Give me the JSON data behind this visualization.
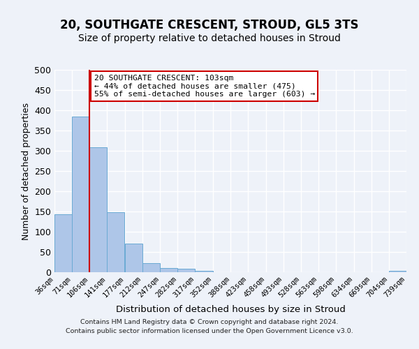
{
  "title": "20, SOUTHGATE CRESCENT, STROUD, GL5 3TS",
  "subtitle": "Size of property relative to detached houses in Stroud",
  "xlabel": "Distribution of detached houses by size in Stroud",
  "ylabel": "Number of detached properties",
  "footer_line1": "Contains HM Land Registry data © Crown copyright and database right 2024.",
  "footer_line2": "Contains public sector information licensed under the Open Government Licence v3.0.",
  "bin_edges": [
    36,
    71,
    106,
    141,
    177,
    212,
    247,
    282,
    317,
    352,
    388,
    423,
    458,
    493,
    528,
    563,
    598,
    634,
    669,
    704,
    739
  ],
  "bin_labels": [
    "36sqm",
    "71sqm",
    "106sqm",
    "141sqm",
    "177sqm",
    "212sqm",
    "247sqm",
    "282sqm",
    "317sqm",
    "352sqm",
    "388sqm",
    "423sqm",
    "458sqm",
    "493sqm",
    "528sqm",
    "563sqm",
    "598sqm",
    "634sqm",
    "669sqm",
    "704sqm",
    "739sqm"
  ],
  "bar_heights": [
    143,
    385,
    308,
    149,
    70,
    22,
    10,
    8,
    4,
    0,
    0,
    0,
    0,
    0,
    0,
    0,
    0,
    0,
    0,
    4
  ],
  "bar_color": "#aec6e8",
  "bar_edge_color": "#6aaad4",
  "property_line_x": 106,
  "annotation_title": "20 SOUTHGATE CRESCENT: 103sqm",
  "annotation_line2": "← 44% of detached houses are smaller (475)",
  "annotation_line3": "55% of semi-detached houses are larger (603) →",
  "ylim": [
    0,
    500
  ],
  "yticks": [
    0,
    50,
    100,
    150,
    200,
    250,
    300,
    350,
    400,
    450,
    500
  ],
  "background_color": "#eef2f9",
  "grid_color": "#ffffff",
  "annotation_box_color": "#ffffff",
  "annotation_box_edge": "#cc0000",
  "property_line_color": "#cc0000",
  "title_fontsize": 12,
  "subtitle_fontsize": 10
}
